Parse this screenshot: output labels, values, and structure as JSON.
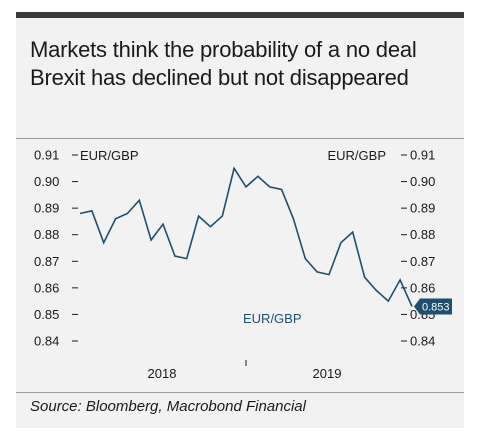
{
  "title": "Markets think the probability of a no deal Brexit has declined but not disappeared",
  "source": "Source: Bloomberg, Macrobond Financial",
  "chart_data": {
    "type": "line",
    "title": "Markets think the probability of a no deal Brexit has declined but not disappeared",
    "left_axis_label": "EUR/GBP",
    "right_axis_label": "EUR/GBP",
    "series_label": "EUR/GBP",
    "ylim": [
      0.84,
      0.91
    ],
    "y_ticks": [
      0.91,
      0.9,
      0.89,
      0.88,
      0.87,
      0.86,
      0.85,
      0.84
    ],
    "y_tick_labels": [
      "0.91",
      "0.90",
      "0.89",
      "0.88",
      "0.87",
      "0.86",
      "0.85",
      "0.84"
    ],
    "x_tick_labels": [
      "2018",
      "2019"
    ],
    "last_value_label": "0.853",
    "grid": false,
    "line_color": "#1e4f6e",
    "series": [
      {
        "name": "EUR/GBP",
        "x": [
          "2017-07",
          "2017-08",
          "2017-09",
          "2017-10",
          "2017-11",
          "2017-12",
          "2018-01",
          "2018-02",
          "2018-03",
          "2018-04",
          "2018-05",
          "2018-06",
          "2018-07",
          "2018-08",
          "2018-09",
          "2018-10",
          "2018-11",
          "2018-12",
          "2019-01",
          "2019-02",
          "2019-03",
          "2019-04",
          "2019-05",
          "2019-06",
          "2019-07",
          "2019-08",
          "2019-09",
          "2019-10",
          "2019-11"
        ],
        "values": [
          0.888,
          0.889,
          0.877,
          0.886,
          0.888,
          0.893,
          0.878,
          0.884,
          0.872,
          0.871,
          0.887,
          0.883,
          0.887,
          0.905,
          0.898,
          0.902,
          0.898,
          0.897,
          0.886,
          0.871,
          0.866,
          0.865,
          0.877,
          0.881,
          0.864,
          0.859,
          0.855,
          0.863,
          0.853
        ]
      }
    ]
  }
}
